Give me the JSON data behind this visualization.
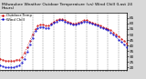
{
  "title": "Milwaukee Weather Outdoor Temperature (vs) Wind Chill (Last 24 Hours)",
  "title_fontsize": 3.2,
  "bg_color": "#d8d8d8",
  "plot_bg_color": "#ffffff",
  "grid_color": "#888888",
  "line1_color": "#cc0000",
  "line2_color": "#0000cc",
  "line1_label": "Outdoor Temp",
  "line2_label": "Wind Chill",
  "ylabel_fontsize": 3.0,
  "xlabel_fontsize": 2.5,
  "ylim": [
    18,
    70
  ],
  "yticks": [
    20,
    25,
    30,
    35,
    40,
    45,
    50,
    55,
    60,
    65
  ],
  "x_values": [
    0,
    1,
    2,
    3,
    4,
    5,
    6,
    7,
    8,
    9,
    10,
    11,
    12,
    13,
    14,
    15,
    16,
    17,
    18,
    19,
    20,
    21,
    22,
    23,
    24,
    25,
    26,
    27,
    28,
    29,
    30,
    31,
    32,
    33,
    34,
    35,
    36,
    37,
    38,
    39,
    40,
    41,
    42,
    43,
    44,
    45,
    46,
    47
  ],
  "temp_values": [
    28,
    27,
    26,
    26,
    26,
    26,
    27,
    27,
    29,
    33,
    38,
    44,
    50,
    55,
    58,
    59,
    59,
    58,
    58,
    60,
    62,
    63,
    64,
    64,
    63,
    62,
    61,
    60,
    60,
    61,
    62,
    63,
    63,
    62,
    61,
    60,
    59,
    58,
    57,
    56,
    55,
    54,
    52,
    50,
    48,
    46,
    44,
    42
  ],
  "chill_values": [
    22,
    21,
    20,
    20,
    20,
    20,
    21,
    22,
    24,
    28,
    34,
    41,
    47,
    53,
    56,
    57,
    57,
    56,
    56,
    59,
    61,
    62,
    63,
    63,
    62,
    61,
    60,
    59,
    59,
    60,
    61,
    62,
    62,
    61,
    60,
    59,
    58,
    57,
    56,
    55,
    54,
    52,
    50,
    48,
    45,
    43,
    41,
    38
  ],
  "vgrid_positions": [
    0,
    4,
    8,
    12,
    16,
    20,
    24,
    28,
    32,
    36,
    40,
    44,
    47
  ],
  "legend_label1": "Outdoor Temp",
  "legend_label2": "Wind Chill"
}
